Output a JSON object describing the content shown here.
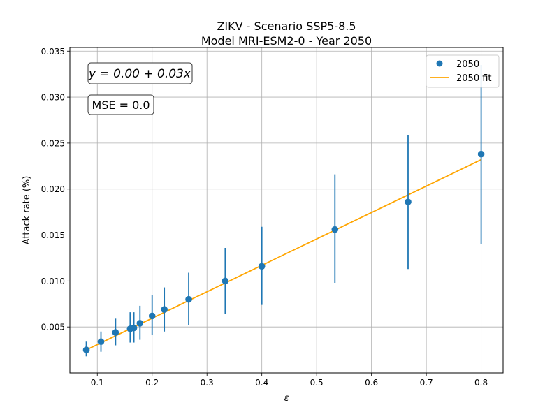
{
  "chart_data": {
    "type": "scatter",
    "title_line1": "ZIKV - Scenario SSP5-8.5",
    "title_line2": "Model MRI-ESM2-0 - Year 2050",
    "xlabel": "ε",
    "ylabel": "Attack rate (%)",
    "xlim": [
      0.05,
      0.84
    ],
    "ylim": [
      0.0,
      0.0354
    ],
    "xticks": [
      0.1,
      0.2,
      0.3,
      0.4,
      0.5,
      0.6,
      0.7,
      0.8
    ],
    "xtick_labels": [
      "0.1",
      "0.2",
      "0.3",
      "0.4",
      "0.5",
      "0.6",
      "0.7",
      "0.8"
    ],
    "yticks": [
      0.005,
      0.01,
      0.015,
      0.02,
      0.025,
      0.03,
      0.035
    ],
    "ytick_labels": [
      "0.005",
      "0.010",
      "0.015",
      "0.020",
      "0.025",
      "0.030",
      "0.035"
    ],
    "grid": true,
    "legend_position": "top-right",
    "series": [
      {
        "name": "2050",
        "kind": "errorbar",
        "color": "#1f77b4",
        "x": [
          0.08,
          0.1067,
          0.1333,
          0.16,
          0.1667,
          0.1778,
          0.2,
          0.2222,
          0.2667,
          0.3333,
          0.4,
          0.5333,
          0.6667,
          0.8
        ],
        "y": [
          0.0025,
          0.0034,
          0.0044,
          0.0048,
          0.0049,
          0.0054,
          0.0062,
          0.0069,
          0.008,
          0.01,
          0.0116,
          0.0156,
          0.0186,
          0.0238
        ],
        "yerr_low": [
          0.0018,
          0.0023,
          0.003,
          0.0033,
          0.0033,
          0.0036,
          0.0041,
          0.0045,
          0.0052,
          0.0064,
          0.0074,
          0.0098,
          0.0113,
          0.014
        ],
        "yerr_high": [
          0.0034,
          0.0045,
          0.0059,
          0.0066,
          0.0066,
          0.0073,
          0.0085,
          0.0093,
          0.0109,
          0.0136,
          0.0159,
          0.0216,
          0.0259,
          0.0335
        ]
      },
      {
        "name": "2050 fit",
        "kind": "line",
        "color": "#ffa500",
        "x": [
          0.08,
          0.8
        ],
        "y": [
          0.0025,
          0.0232
        ]
      }
    ],
    "annotations": {
      "equation_text": "y = 0.00 + 0.03x",
      "mse_text": "MSE = 0.0"
    }
  }
}
